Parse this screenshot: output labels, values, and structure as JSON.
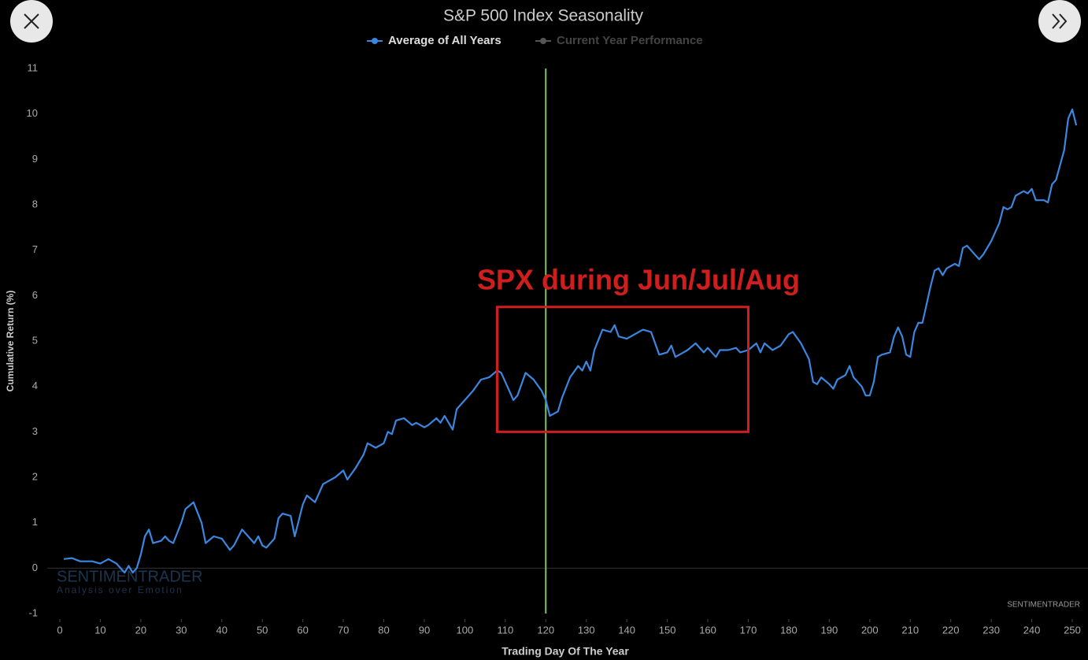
{
  "chart_data": {
    "type": "line",
    "title": "S&P 500 Index Seasonality",
    "x_label": "Trading Day Of The Year",
    "y_label": "Cumulative Return (%)",
    "annotation": "SPX during Jun/Jul/Aug",
    "highlight": {
      "x": [
        108,
        170
      ],
      "y": [
        3,
        5.75
      ],
      "color": "#d01e1e"
    },
    "vline": {
      "x": 120,
      "color": "#7fc36a"
    },
    "watermark": "SENTIMENTRADER",
    "watermark_sub": "Analysis over Emotion",
    "credit": "SENTIMENTRADER",
    "xlim": [
      0,
      250
    ],
    "xticks": [
      0,
      10,
      20,
      30,
      40,
      50,
      60,
      70,
      80,
      90,
      100,
      110,
      120,
      130,
      140,
      150,
      160,
      170,
      180,
      190,
      200,
      210,
      220,
      230,
      240,
      250
    ],
    "ylim": [
      -1,
      11
    ],
    "yticks": [
      -1,
      0,
      1,
      2,
      3,
      4,
      5,
      6,
      7,
      8,
      9,
      10,
      11
    ],
    "series": [
      {
        "name": "Average of All Years",
        "color": "#3a87e0",
        "x": [
          1,
          3,
          5,
          8,
          10,
          12,
          14,
          16,
          17,
          18,
          19,
          20,
          21,
          22,
          23,
          25,
          26,
          27,
          28,
          30,
          31,
          33,
          35,
          36,
          38,
          40,
          42,
          43,
          45,
          47,
          48,
          49,
          50,
          51,
          53,
          54,
          55,
          57,
          58,
          60,
          61,
          63,
          65,
          66,
          68,
          70,
          71,
          73,
          75,
          76,
          78,
          80,
          81,
          82,
          83,
          85,
          87,
          88,
          90,
          91,
          93,
          94,
          95,
          97,
          98,
          100,
          102,
          104,
          106,
          108,
          109,
          111,
          112,
          113,
          115,
          117,
          119,
          120,
          121,
          123,
          124,
          126,
          128,
          129,
          130,
          131,
          132,
          134,
          136,
          137,
          138,
          140,
          142,
          144,
          146,
          148,
          150,
          151,
          152,
          154,
          155,
          157,
          159,
          160,
          162,
          163,
          165,
          167,
          168,
          170,
          172,
          173,
          174,
          176,
          178,
          180,
          181,
          183,
          185,
          186,
          187,
          188,
          190,
          191,
          192,
          194,
          195,
          196,
          198,
          199,
          200,
          201,
          202,
          203,
          205,
          206,
          207,
          208,
          209,
          210,
          211,
          212,
          213,
          215,
          216,
          217,
          218,
          219,
          221,
          222,
          223,
          224,
          225,
          227,
          228,
          230,
          232,
          233,
          234,
          235,
          236,
          238,
          239,
          240,
          241,
          243,
          244,
          245,
          246,
          248,
          249,
          250,
          251
        ],
        "values": [
          0.2,
          0.22,
          0.15,
          0.15,
          0.1,
          0.2,
          0.1,
          -0.1,
          0.05,
          -0.1,
          0.0,
          0.3,
          0.7,
          0.85,
          0.55,
          0.6,
          0.7,
          0.6,
          0.55,
          1.0,
          1.3,
          1.45,
          1.0,
          0.55,
          0.7,
          0.65,
          0.4,
          0.5,
          0.85,
          0.65,
          0.55,
          0.7,
          0.5,
          0.45,
          0.65,
          1.1,
          1.2,
          1.15,
          0.7,
          1.4,
          1.6,
          1.45,
          1.85,
          1.9,
          2.0,
          2.15,
          1.95,
          2.2,
          2.5,
          2.75,
          2.65,
          2.75,
          3.0,
          2.95,
          3.25,
          3.3,
          3.15,
          3.2,
          3.1,
          3.15,
          3.3,
          3.2,
          3.35,
          3.05,
          3.5,
          3.7,
          3.9,
          4.15,
          4.2,
          4.35,
          4.3,
          3.9,
          3.7,
          3.8,
          4.3,
          4.15,
          3.9,
          3.7,
          3.35,
          3.45,
          3.75,
          4.2,
          4.45,
          4.35,
          4.55,
          4.35,
          4.8,
          5.25,
          5.2,
          5.35,
          5.1,
          5.05,
          5.15,
          5.25,
          5.2,
          4.7,
          4.75,
          4.9,
          4.65,
          4.75,
          4.8,
          4.95,
          4.75,
          4.85,
          4.65,
          4.8,
          4.8,
          4.85,
          4.75,
          4.8,
          4.95,
          4.75,
          4.95,
          4.8,
          4.9,
          5.15,
          5.2,
          4.95,
          4.6,
          4.1,
          4.05,
          4.2,
          4.05,
          3.95,
          4.15,
          4.25,
          4.45,
          4.2,
          4.0,
          3.8,
          3.8,
          4.1,
          4.65,
          4.7,
          4.75,
          5.1,
          5.3,
          5.1,
          4.7,
          4.65,
          5.2,
          5.4,
          5.4,
          6.2,
          6.55,
          6.6,
          6.45,
          6.6,
          6.7,
          6.65,
          7.05,
          7.1,
          7.0,
          6.8,
          6.9,
          7.2,
          7.6,
          7.95,
          7.9,
          7.95,
          8.2,
          8.3,
          8.25,
          8.35,
          8.1,
          8.1,
          8.05,
          8.45,
          8.55,
          9.2,
          9.9,
          10.1,
          9.75
        ]
      },
      {
        "name": "Current Year Performance",
        "color": "#555555",
        "x": [],
        "values": []
      }
    ]
  }
}
